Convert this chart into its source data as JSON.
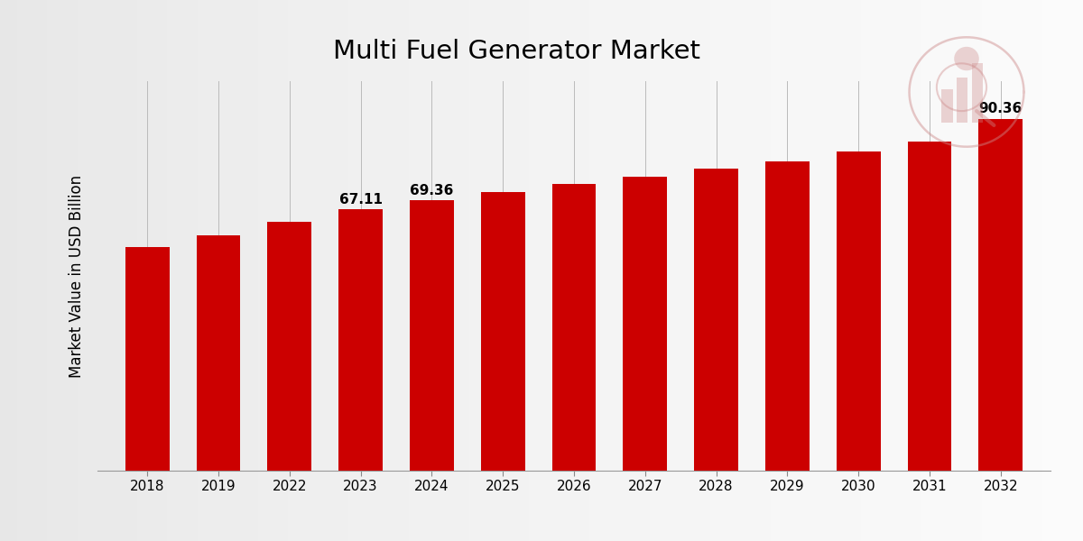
{
  "title": "Multi Fuel Generator Market",
  "ylabel": "Market Value in USD Billion",
  "categories": [
    "2018",
    "2019",
    "2022",
    "2023",
    "2024",
    "2025",
    "2026",
    "2027",
    "2028",
    "2029",
    "2030",
    "2031",
    "2032"
  ],
  "values": [
    57.5,
    60.5,
    64.0,
    67.11,
    69.36,
    71.5,
    73.5,
    75.5,
    77.5,
    79.5,
    82.0,
    84.5,
    90.36
  ],
  "bar_color": "#CC0000",
  "label_values": {
    "2023": "67.11",
    "2024": "69.36",
    "2032": "90.36"
  },
  "ylim_max": 100,
  "title_fontsize": 21,
  "ylabel_fontsize": 12,
  "tick_fontsize": 11,
  "annotation_fontsize": 11,
  "grid_color": "#bbbbbb",
  "bottom_strip_color": "#CC0000",
  "spine_bottom_color": "#999999",
  "bar_width": 0.62
}
